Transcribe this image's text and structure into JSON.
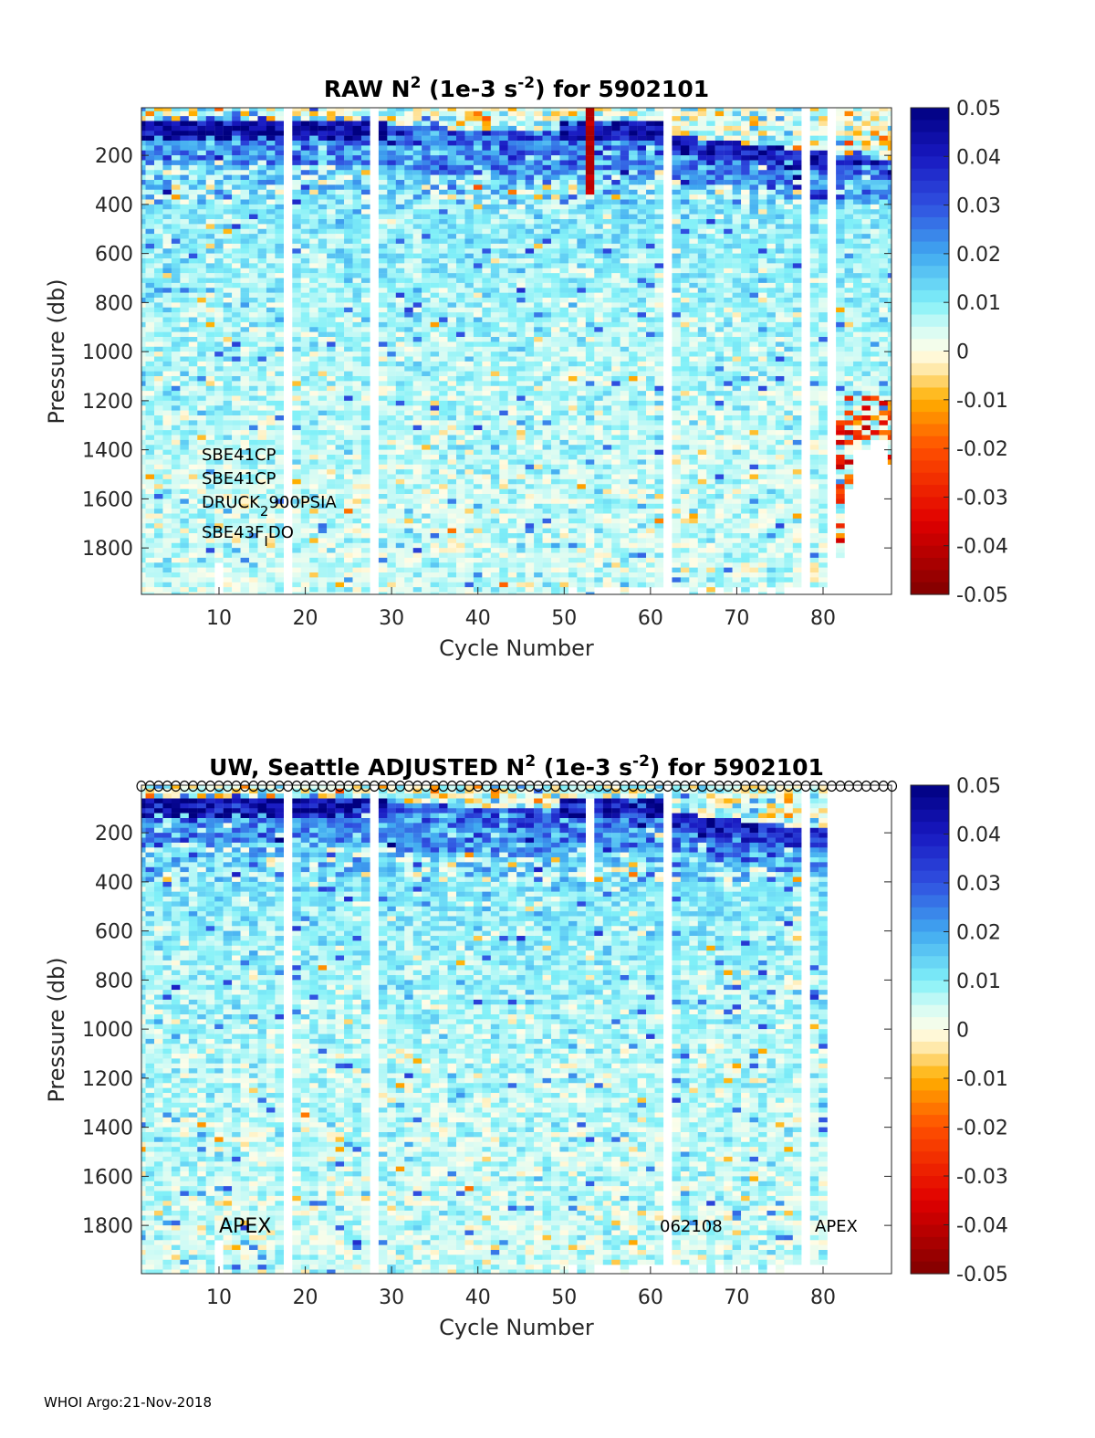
{
  "chart_data": [
    {
      "type": "heatmap",
      "id": "raw",
      "title": {
        "prefix": "RAW N",
        "sup1": "2",
        "mid": " (1e-3 s",
        "sup2": "-2",
        "suffix": ") for 5902101"
      },
      "xlabel": "Cycle Number",
      "ylabel": "Pressure (db)",
      "xlim": [
        1,
        88
      ],
      "ylim": [
        1990,
        6
      ],
      "xticks": [
        "10",
        "20",
        "30",
        "40",
        "50",
        "60",
        "70",
        "80"
      ],
      "yticks": [
        "200",
        "400",
        "600",
        "800",
        "1000",
        "1200",
        "1400",
        "1600",
        "1800"
      ],
      "missing_cycles": [
        18,
        28,
        62,
        78,
        81
      ],
      "max_pressure_by_cycle": {
        "10": 1850,
        "51": 1950,
        "54": 1950,
        "55": 1950,
        "56": 1950,
        "58": 1955,
        "59": 1955,
        "60": 1955,
        "61": 1955,
        "63": 1950,
        "64": 1955,
        "66": 1950,
        "68": 1955,
        "70": 1950,
        "72": 1955,
        "74": 1950,
        "76": 1955,
        "77": 1950,
        "79": 1950,
        "80": 1955,
        "82": 1830,
        "83": 1560,
        "84": 1400,
        "85": 1400,
        "86": 1350,
        "87": 1350,
        "88": 1450
      },
      "anomalous_cycle": {
        "cycle": 53,
        "pressure_range": [
          0,
          350
        ],
        "value": -0.045
      },
      "profile_summary": {
        "pressure": [
          50,
          100,
          150,
          200,
          300,
          400,
          600,
          800,
          1000,
          1200,
          1400,
          1600,
          1800,
          1950
        ],
        "mean_value": [
          0.004,
          0.042,
          0.035,
          0.022,
          0.018,
          0.016,
          0.013,
          0.011,
          0.009,
          0.007,
          0.006,
          0.005,
          0.0045,
          0.004
        ]
      },
      "annotations": [
        "SBE41CP",
        "SBE41CP",
        "DRUCK",
        "2",
        "900PSIA",
        "SBE43F",
        "I",
        "DO"
      ]
    },
    {
      "type": "heatmap",
      "id": "adjusted",
      "title": {
        "prefix": "UW, Seattle  ADJUSTED N",
        "sup1": "2",
        "mid": " (1e-3 s",
        "sup2": "-2",
        "suffix": ") for 5902101"
      },
      "xlabel": "Cycle Number",
      "ylabel": "Pressure (db)",
      "xlim": [
        1,
        88
      ],
      "ylim": [
        1990,
        6
      ],
      "xticks": [
        "10",
        "20",
        "30",
        "40",
        "50",
        "60",
        "70",
        "80"
      ],
      "yticks": [
        "200",
        "400",
        "600",
        "800",
        "1000",
        "1200",
        "1400",
        "1600",
        "1800"
      ],
      "missing_cycles": [
        18,
        28,
        62,
        78,
        82,
        83,
        84,
        85,
        86,
        87,
        88
      ],
      "blanked_segment": {
        "cycle": 53,
        "pressure_range": [
          50,
          400
        ]
      },
      "qc_markers": {
        "symbol": "circle",
        "cycles": "1-88"
      },
      "annotations": [
        "APEX",
        "062108",
        "APEX"
      ]
    }
  ],
  "colorbar": {
    "ticks": [
      "0.05",
      "0.04",
      "0.03",
      "0.02",
      "0.01",
      "0",
      "-0.01",
      "-0.02",
      "-0.03",
      "-0.04",
      "-0.05"
    ],
    "range": [
      -0.05,
      0.05
    ],
    "colors": [
      "#800000",
      "#e00000",
      "#ff5000",
      "#ffb000",
      "#fff0c0",
      "#fffde8",
      "#d0fbf5",
      "#80f0f8",
      "#40a8f0",
      "#3050e0",
      "#1818c0",
      "#000080"
    ]
  },
  "footer": "WHOI Argo:21-Nov-2018"
}
